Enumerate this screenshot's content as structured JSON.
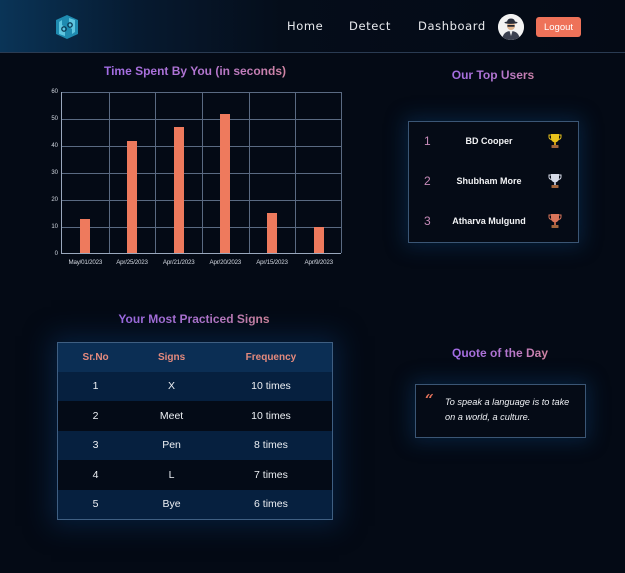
{
  "navbar": {
    "logo": "hands-logo-icon",
    "links": [
      "Home",
      "Detect",
      "Dashboard"
    ],
    "avatar": "user-avatar-icon",
    "logout_label": "Logout"
  },
  "chart_section": {
    "title": "Time Spent By You (in seconds)"
  },
  "chart_data": {
    "type": "bar",
    "title": "Time Spent By You (in seconds)",
    "xlabel": "",
    "ylabel": "",
    "categories": [
      "May/01/2023",
      "Apr/25/2023",
      "Apr/21/2023",
      "Apr/20/2023",
      "Apr/15/2023",
      "Apr/9/2023"
    ],
    "values": [
      12.5,
      41.5,
      46.5,
      51.5,
      15,
      9.8
    ],
    "ylim": [
      0,
      60
    ],
    "yticks": [
      0,
      10,
      20,
      30,
      40,
      50,
      60
    ],
    "grid": true,
    "bar_color": "#ee7a5d"
  },
  "top_users": {
    "title": "Our Top Users",
    "users": [
      {
        "rank": "1",
        "name": "BD Cooper",
        "icon": "gold-trophy-icon"
      },
      {
        "rank": "2",
        "name": "Shubham More",
        "icon": "silver-trophy-icon"
      },
      {
        "rank": "3",
        "name": "Atharva Mulgund",
        "icon": "bronze-trophy-icon"
      }
    ]
  },
  "signs_section": {
    "title": "Your Most Practiced Signs",
    "headers": [
      "Sr.No",
      "Signs",
      "Frequency"
    ],
    "rows": [
      [
        "1",
        "X",
        "10 times"
      ],
      [
        "2",
        "Meet",
        "10 times"
      ],
      [
        "3",
        "Pen",
        "8 times"
      ],
      [
        "4",
        "L",
        "7 times"
      ],
      [
        "5",
        "Bye",
        "6 times"
      ]
    ]
  },
  "quote_section": {
    "title": "Quote of the Day",
    "mark": "“",
    "text": "To speak a language is to take on a world, a culture."
  },
  "colors": {
    "background": "#040a15",
    "accent": "#ee7259",
    "title_gradient_start": "#9a68ee",
    "title_gradient_end": "#e18d8a",
    "table_header_bg": "#0b2e54"
  }
}
